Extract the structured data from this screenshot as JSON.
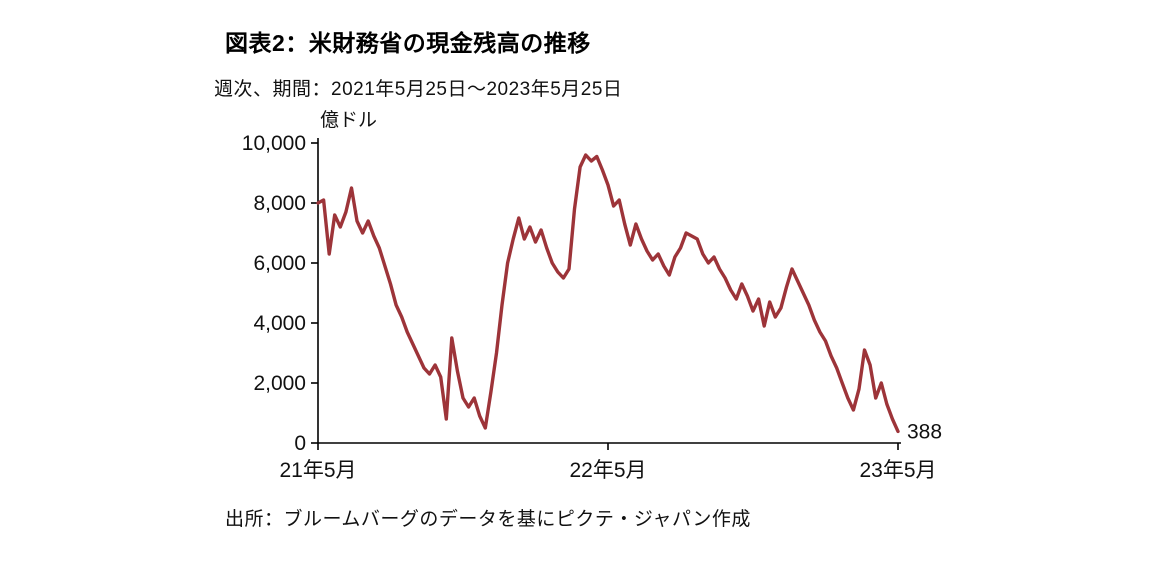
{
  "header": {
    "title": "図表2：米財務省の現金残高の推移",
    "subtitle": "週次、期間：2021年5月25日～2023年5月25日"
  },
  "footer": {
    "source": "出所：ブルームバーグのデータを基にピクテ・ジャパン作成"
  },
  "chart_data": {
    "type": "line",
    "title": "図表2：米財務省の現金残高の推移",
    "unit": "億ドル",
    "ylabel": "億ドル",
    "xlabel": "",
    "ylim": [
      0,
      10000
    ],
    "grid": false,
    "legend": "none",
    "ytick_labels": [
      "0",
      "2,000",
      "4,000",
      "6,000",
      "8,000",
      "10,000"
    ],
    "xtick_labels": [
      "21年5月",
      "22年5月",
      "23年5月"
    ],
    "end_label": "388",
    "end_value": 388,
    "line_color": "#9d3439",
    "axis_color": "#000000",
    "text_color": "#111111",
    "series": [
      {
        "name": "米財務省の現金残高",
        "values": [
          8000,
          8100,
          6300,
          7600,
          7200,
          7700,
          8500,
          7400,
          7000,
          7400,
          6900,
          6500,
          5900,
          5300,
          4600,
          4200,
          3700,
          3300,
          2900,
          2500,
          2300,
          2600,
          2200,
          800,
          3500,
          2400,
          1500,
          1200,
          1500,
          900,
          500,
          1700,
          3000,
          4600,
          6000,
          6800,
          7500,
          6800,
          7200,
          6700,
          7100,
          6500,
          6000,
          5700,
          5500,
          5800,
          7800,
          9200,
          9600,
          9400,
          9550,
          9100,
          8600,
          7900,
          8100,
          7300,
          6600,
          7300,
          6800,
          6400,
          6100,
          6300,
          5900,
          5600,
          6200,
          6500,
          7000,
          6900,
          6800,
          6300,
          6000,
          6200,
          5800,
          5500,
          5100,
          4800,
          5300,
          4900,
          4400,
          4800,
          3900,
          4700,
          4200,
          4500,
          5200,
          5800,
          5400,
          5000,
          4600,
          4100,
          3700,
          3400,
          2900,
          2500,
          2000,
          1500,
          1100,
          1800,
          3100,
          2600,
          1500,
          2000,
          1300,
          800,
          388
        ]
      }
    ]
  }
}
